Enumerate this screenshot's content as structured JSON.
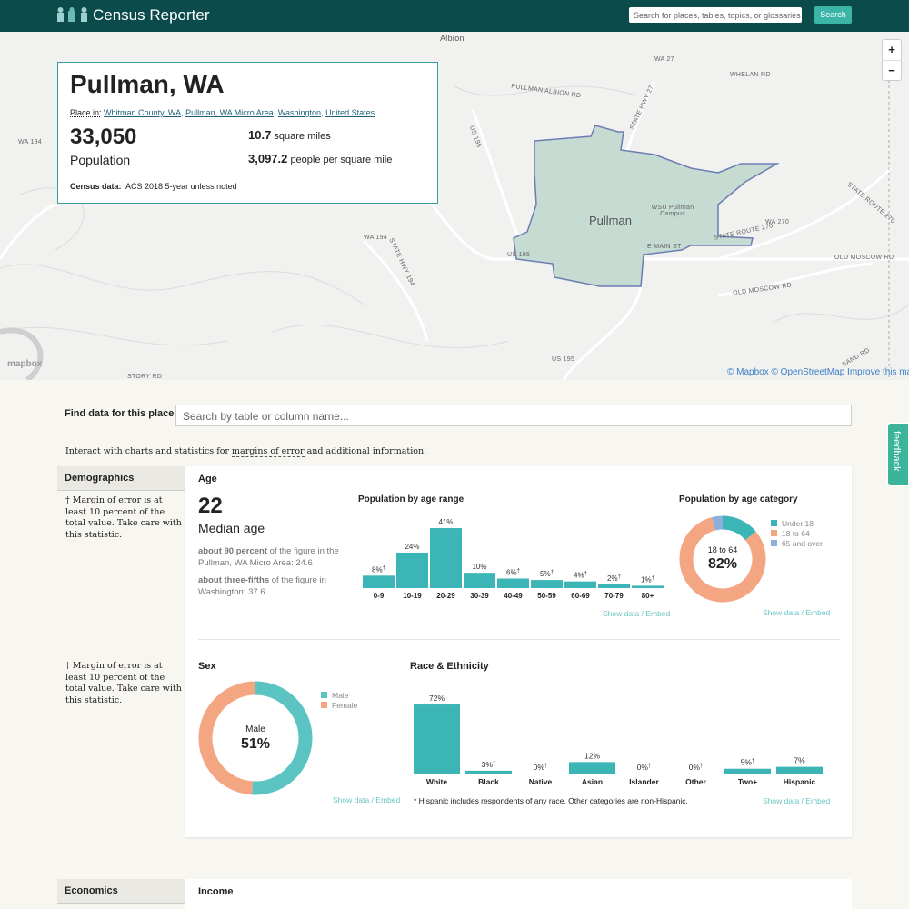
{
  "header": {
    "logo": "Census Reporter",
    "search_placeholder": "Search for places, tables, topics, or glossaries",
    "search_button": "Search"
  },
  "map": {
    "labels": [
      "Albion",
      "WA 27",
      "WHELAN RD",
      "PULLMAN ALBION RD",
      "STATE HWY 27",
      "US 195",
      "WA 194",
      "STATE HWY 194",
      "Pullman",
      "WSU Pullman Campus",
      "STATE ROUTE 270",
      "WA 270",
      "OLD MOSCOW RD",
      "US 195",
      "STORY RD",
      "SAND RD",
      "E MAIN ST",
      "WA 194",
      "US 195",
      "OLD MOSCOW RD",
      "STATE ROUTE 270"
    ],
    "zoom_in": "+",
    "zoom_out": "−",
    "logo": "mapbox",
    "attribution": [
      "© Mapbox",
      "© OpenStreetMap",
      "Improve this map"
    ]
  },
  "profile": {
    "title": "Pullman, WA",
    "place_in": {
      "label": "Place in:",
      "separator": ",",
      "links": [
        "Whitman County, WA",
        "Pullman, WA Micro Area",
        "Washington",
        "United States"
      ]
    },
    "population": "33,050",
    "population_label": "Population",
    "area": "10.7",
    "area_label": "square miles",
    "density": "3,097.2",
    "density_label": "people per square mile",
    "census_label": "Census data:",
    "census_value": "ACS 2018 5-year unless noted"
  },
  "find": {
    "label": "Find data for this place",
    "placeholder": "Search by table or column name..."
  },
  "interact": {
    "before": "Interact with charts and statistics for",
    "link": "margins of error",
    "after": "and additional information."
  },
  "feedback": "feedback",
  "links": {
    "show_data": "Show data",
    "sep": "/",
    "embed": "Embed"
  },
  "demographics": {
    "section": "Demographics",
    "dagger": "†",
    "note": "Margin of error is at least 10 percent of the total value. Take care with this statistic.",
    "age": {
      "title": "Age",
      "median": "22",
      "median_label": "Median age",
      "comp1_bold": "about 90 percent",
      "comp1": "of the figure in the Pullman, WA Micro Area: 24.6",
      "comp2_bold": "about three-fifths",
      "comp2": "of the figure in Washington: 37.6"
    },
    "footnote": "* Hispanic includes respondents of any race. Other categories are non-Hispanic."
  },
  "chart_data": [
    {
      "type": "bar",
      "title": "Population by age range",
      "color": "#3bb5b5",
      "categories": [
        "0-9",
        "10-19",
        "20-29",
        "30-39",
        "40-49",
        "50-59",
        "60-69",
        "70-79",
        "80+"
      ],
      "values": [
        8,
        24,
        41,
        10,
        6,
        5,
        4,
        2,
        1
      ],
      "value_labels": [
        "8%",
        "24%",
        "41%",
        "10%",
        "6%",
        "5%",
        "4%",
        "2%",
        "1%"
      ],
      "notes": [
        "†",
        null,
        null,
        null,
        "†",
        "†",
        "†",
        "†",
        "†"
      ]
    },
    {
      "type": "donut",
      "title": "Population by age category",
      "categories": [
        "Under 18",
        "18 to 64",
        "65 and over"
      ],
      "values": [
        14,
        82,
        4
      ],
      "colors": [
        "#3bb5b5",
        "#f4a582",
        "#8cb0db"
      ],
      "center_label": "18 to 64",
      "center_value": "82%"
    },
    {
      "type": "donut",
      "title": "Sex",
      "categories": [
        "Male",
        "Female"
      ],
      "values": [
        51,
        49
      ],
      "colors": [
        "#5cc3c3",
        "#f4a582"
      ],
      "center_label": "Male",
      "center_value": "51%"
    },
    {
      "type": "bar",
      "title": "Race & Ethnicity",
      "color": "#3bb5b5",
      "categories": [
        "White",
        "Black",
        "Native",
        "Asian",
        "Islander",
        "Other",
        "Two+",
        "Hispanic"
      ],
      "values": [
        72,
        3,
        0,
        12,
        0,
        0,
        5,
        7
      ],
      "value_labels": [
        "72%",
        "3%",
        "0%",
        "12%",
        "0%",
        "0%",
        "5%",
        "7%"
      ],
      "notes": [
        null,
        "†",
        "†",
        null,
        "†",
        "†",
        "†",
        null
      ]
    }
  ],
  "economics": {
    "section": "Economics",
    "income": "Income"
  }
}
